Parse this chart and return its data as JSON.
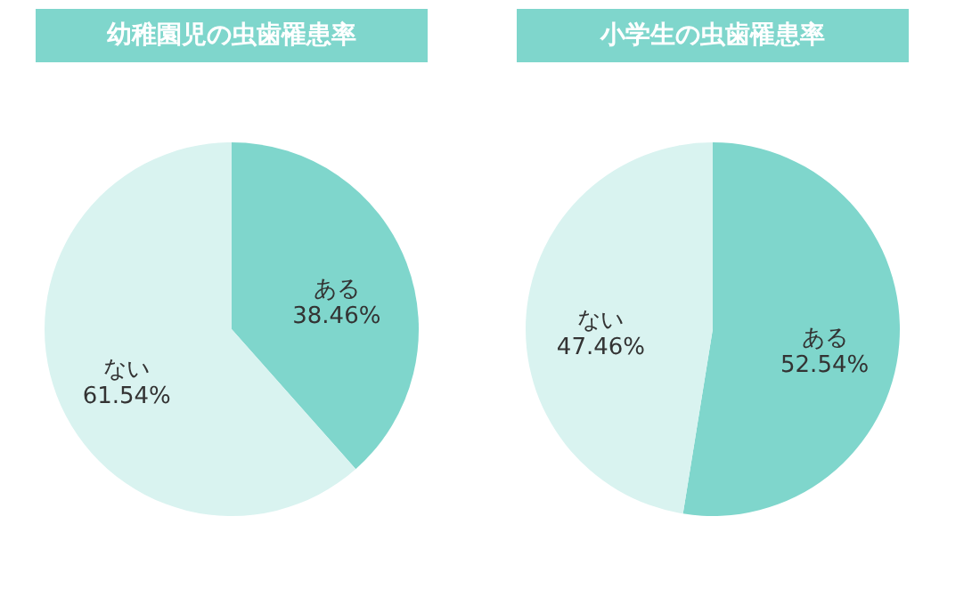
{
  "chart_data": [
    {
      "type": "pie",
      "title": "幼稚園児の虫歯罹患率",
      "categories": [
        "ある",
        "ない"
      ],
      "values": [
        38.46,
        61.54
      ],
      "value_labels": [
        "38.46%",
        "61.54%"
      ],
      "colors": [
        "#7fd6cc",
        "#d9f3f0"
      ],
      "legend": false
    },
    {
      "type": "pie",
      "title": "小学生の虫歯罹患率",
      "categories": [
        "ある",
        "ない"
      ],
      "values": [
        52.54,
        47.46
      ],
      "value_labels": [
        "52.54%",
        "47.46%"
      ],
      "colors": [
        "#7fd6cc",
        "#d9f3f0"
      ],
      "legend": false
    }
  ]
}
